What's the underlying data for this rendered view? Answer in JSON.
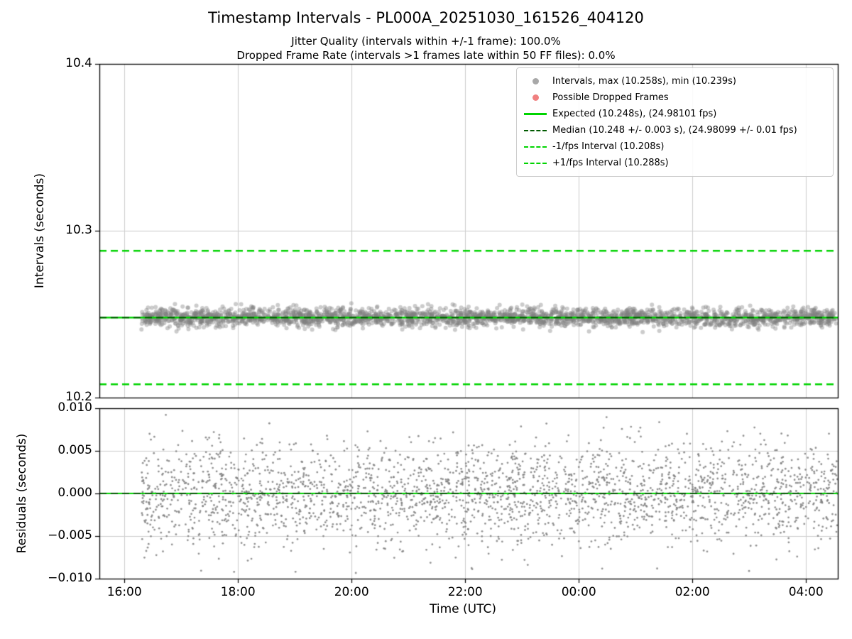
{
  "title": "Timestamp Intervals - PL000A_20251030_161526_404120",
  "subtitle1": "Jitter Quality (intervals within +/-1 frame): 100.0%",
  "subtitle2": "Dropped Frame Rate (intervals >1 frames late within 50 FF files): 0.0%",
  "x_axis": {
    "label": "Time (UTC)",
    "ticks_hours": [
      16,
      18,
      20,
      22,
      24,
      26,
      28
    ],
    "tick_labels": [
      "16:00",
      "18:00",
      "20:00",
      "22:00",
      "00:00",
      "02:00",
      "04:00"
    ],
    "range_hours": [
      15.56,
      28.56
    ]
  },
  "colors": {
    "bright_green": "#00d400",
    "dark_green": "#005a00",
    "point_gray": "#808080",
    "dropped_red": "#f08080",
    "grid": "#cdcdcd",
    "spine": "#000000"
  },
  "chart_data": [
    {
      "type": "scatter",
      "panel": "intervals",
      "ylabel": "Intervals (seconds)",
      "ylim": [
        10.2,
        10.4
      ],
      "yticks": [
        10.2,
        10.3,
        10.4
      ],
      "ytick_labels": [
        "10.2",
        "10.3",
        "10.4"
      ],
      "grid": true,
      "points": {
        "count": 2600,
        "x_start_hours": 16.3,
        "x_end_hours": 28.56,
        "center": 10.248,
        "sigma": 0.0028,
        "min": 10.239,
        "max": 10.258,
        "radius": 3,
        "alpha": 0.4
      },
      "lines": [
        {
          "name": "expected",
          "y": 10.248,
          "style": "solid",
          "color": "#00d400",
          "width": 2.5
        },
        {
          "name": "median",
          "y": 10.248,
          "style": "dashed",
          "color": "#005a00",
          "width": 2
        },
        {
          "name": "minus_1fps",
          "y": 10.208,
          "style": "dashed",
          "color": "#00d400",
          "width": 2.5
        },
        {
          "name": "plus_1fps",
          "y": 10.288,
          "style": "dashed",
          "color": "#00d400",
          "width": 2.5
        }
      ],
      "legend": {
        "position": "upper right",
        "entries": [
          {
            "marker": "dot",
            "color": "#a8a8a8",
            "label": "Intervals, max (10.258s), min (10.239s)"
          },
          {
            "marker": "dot",
            "color": "#f08080",
            "label": "Possible Dropped Frames"
          },
          {
            "marker": "line-solid",
            "color": "#00d400",
            "label": "Expected (10.248s), (24.98101 fps)"
          },
          {
            "marker": "line-dashed",
            "color": "#005a00",
            "label": "Median (10.248 +/- 0.003 s), (24.98099 +/- 0.01 fps)"
          },
          {
            "marker": "line-dashed",
            "color": "#00d400",
            "label": "-1/fps Interval (10.208s)"
          },
          {
            "marker": "line-dashed",
            "color": "#00d400",
            "label": "+1/fps Interval (10.288s)"
          }
        ]
      }
    },
    {
      "type": "scatter",
      "panel": "residuals",
      "ylabel": "Residuals (seconds)",
      "ylim": [
        -0.01,
        0.01
      ],
      "yticks": [
        0.01,
        0.005,
        0.0,
        -0.005,
        -0.01
      ],
      "ytick_labels": [
        "0.010",
        "0.005",
        "0.000",
        "−0.005",
        "−0.010"
      ],
      "grid": true,
      "points": {
        "count": 2600,
        "x_start_hours": 16.3,
        "x_end_hours": 28.56,
        "center": 0.0,
        "sigma": 0.003,
        "min": -0.0095,
        "max": 0.0095,
        "radius": 1.4,
        "alpha": 0.85
      },
      "lines": [
        {
          "name": "zero_expected",
          "y": 0.0,
          "style": "solid",
          "color": "#00d400",
          "width": 2
        },
        {
          "name": "zero_median",
          "y": 0.0,
          "style": "dashed",
          "color": "#005a00",
          "width": 1.8
        }
      ]
    }
  ]
}
